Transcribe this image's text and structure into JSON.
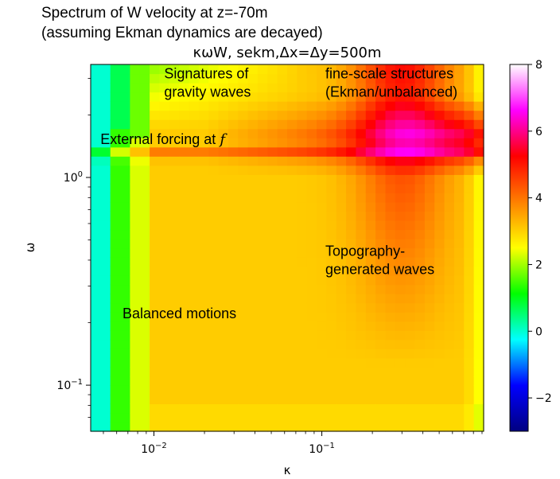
{
  "figure": {
    "suptitle_line1": "Spectrum of W velocity at z=-70m",
    "suptitle_line2": "(assuming Ekman dynamics are decayed)"
  },
  "chart_data": {
    "type": "heatmap",
    "title": "κωW, sekm,Δx=Δy=500m",
    "xlabel": "κ",
    "ylabel": "ω",
    "xscale": "log",
    "yscale": "log",
    "xlim": [
      0.0042,
      0.92
    ],
    "ylim": [
      0.06,
      3.5
    ],
    "x_ticks": [
      {
        "value": 0.01,
        "label": "10",
        "exp": "−2"
      },
      {
        "value": 0.1,
        "label": "10",
        "exp": "−1"
      }
    ],
    "y_ticks": [
      {
        "value": 0.1,
        "label": "10",
        "exp": "−1"
      },
      {
        "value": 1,
        "label": "10",
        "exp": "0"
      }
    ],
    "colorbar": {
      "min": -3,
      "max": 8,
      "ticks": [
        8,
        6,
        4,
        2,
        0,
        -2
      ],
      "tick_labels": [
        "8",
        "6",
        "4",
        "2",
        "0",
        "−2"
      ],
      "colormap": [
        "#000080",
        "#0000ff",
        "#00ffff",
        "#00ff00",
        "#ffff00",
        "#ff8000",
        "#ff0000",
        "#ff00ff",
        "#ffffff"
      ]
    },
    "features": {
      "forcing_frequency": 1.3,
      "peak_kappa": 0.3,
      "peak_value": 5.2
    },
    "annotations": [
      {
        "id": "gravity",
        "text_lines": [
          "Signatures of",
          "gravity waves"
        ],
        "x": 0.0115,
        "y": 3.0
      },
      {
        "id": "finescale",
        "text_lines": [
          "fine-scale structures",
          "(Ekman/unbalanced)"
        ],
        "x": 0.105,
        "y": 3.0
      },
      {
        "id": "forcing",
        "text": "External forcing at ",
        "symbol": "f",
        "x": 0.0048,
        "y": 1.45
      },
      {
        "id": "topo",
        "text_lines": [
          "Topography-",
          "generated waves"
        ],
        "x": 0.105,
        "y": 0.42
      },
      {
        "id": "balanced",
        "text": "Balanced motions",
        "x": 0.0065,
        "y": 0.21
      }
    ]
  }
}
